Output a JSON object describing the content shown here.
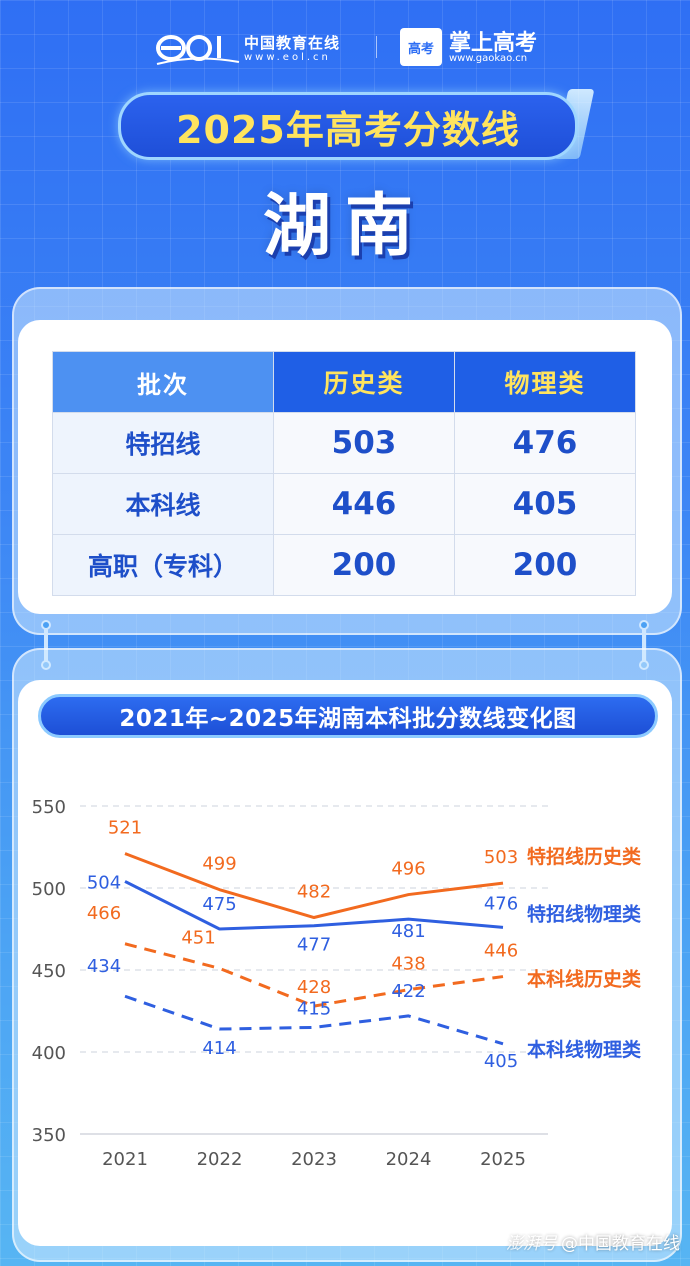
{
  "header": {
    "eol_name": "中国教育在线",
    "eol_url": "www.eol.cn",
    "gaokao_badge": "高考",
    "gaokao_name": "掌上高考",
    "gaokao_url": "www.gaokao.cn"
  },
  "title": "2025年高考分数线",
  "province": "湖南",
  "table": {
    "headers": [
      "批次",
      "历史类",
      "物理类"
    ],
    "rows": [
      {
        "label": "特招线",
        "history": "503",
        "physics": "476"
      },
      {
        "label": "本科线",
        "history": "446",
        "physics": "405"
      },
      {
        "label": "高职（专科）",
        "history": "200",
        "physics": "200"
      }
    ]
  },
  "chart_title": "2021年~2025年湖南本科批分数线变化图",
  "colors": {
    "orange": "#f26a1f",
    "blue": "#2f5fe0",
    "title_yellow": "#ffe45e"
  },
  "chart_data": {
    "type": "line",
    "categories": [
      "2021",
      "2022",
      "2023",
      "2024",
      "2025"
    ],
    "ylim": [
      350,
      550
    ],
    "yticks": [
      350,
      400,
      450,
      500,
      550
    ],
    "series": [
      {
        "name": "特招线历史类",
        "values": [
          521,
          499,
          482,
          496,
          503
        ],
        "color": "#f26a1f",
        "style": "solid"
      },
      {
        "name": "特招线物理类",
        "values": [
          504,
          475,
          477,
          481,
          476
        ],
        "color": "#2f5fe0",
        "style": "solid"
      },
      {
        "name": "本科线历史类",
        "values": [
          466,
          451,
          428,
          438,
          446
        ],
        "color": "#f26a1f",
        "style": "dashed"
      },
      {
        "name": "本科线物理类",
        "values": [
          434,
          414,
          415,
          422,
          405
        ],
        "color": "#2f5fe0",
        "style": "dashed"
      }
    ]
  },
  "watermark": {
    "prefix": "澎湃号",
    "text": "@中国教育在线"
  }
}
